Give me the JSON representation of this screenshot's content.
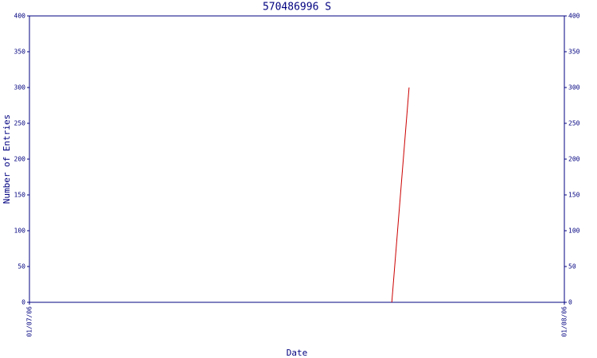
{
  "chart_data": {
    "type": "line",
    "title": "570486996 S",
    "xlabel": "Date",
    "ylabel": "Number of Entries",
    "x": [
      21,
      22
    ],
    "series": [
      {
        "name": "570486996 S",
        "color": "#cc0000",
        "values": [
          0,
          300
        ]
      }
    ],
    "xlim": [
      0,
      31
    ],
    "xticks": [
      {
        "value": 0,
        "label": "01/07/06"
      },
      {
        "value": 31,
        "label": "01/08/06"
      }
    ],
    "ylim": [
      0,
      400
    ],
    "yticks": [
      0,
      50,
      100,
      150,
      200,
      250,
      300,
      350,
      400
    ],
    "y2lim": [
      0,
      400
    ],
    "y2ticks": [
      0,
      50,
      100,
      150,
      200,
      250,
      300,
      350,
      400
    ],
    "axis_color": "#000080"
  }
}
